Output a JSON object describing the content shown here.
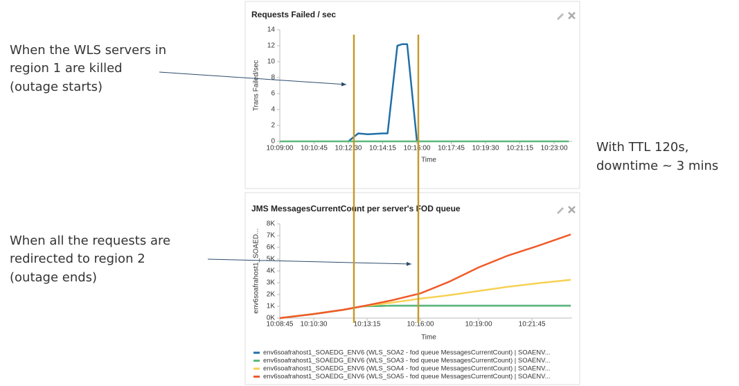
{
  "annotations": {
    "outage_start": [
      "When the WLS servers in",
      "region 1 are killed",
      "(outage starts)"
    ],
    "outage_end": [
      "When all the requests are",
      "redirected to region 2",
      "(outage ends)"
    ],
    "summary": [
      "With TTL 120s,",
      "downtime ~ 3 mins"
    ]
  },
  "chart_data": [
    {
      "type": "line",
      "title": "Requests Failed / sec",
      "x_label": "Time",
      "y_label": "Trans Failed/sec",
      "x": [
        "10:09:00",
        "10:12:30",
        "10:13:00",
        "10:13:30",
        "10:14:15",
        "10:14:30",
        "10:15:00",
        "10:15:15",
        "10:15:30",
        "10:16:00",
        "10:23:45"
      ],
      "series": [
        {
          "color": "#1f6fa8",
          "values": [
            null,
            0,
            1,
            0.9,
            1,
            1,
            12,
            12.2,
            12.2,
            0,
            null
          ]
        },
        {
          "color": "#5cb87a",
          "values": [
            0,
            0,
            0,
            0,
            0,
            0,
            0,
            0,
            0,
            0,
            0
          ]
        }
      ],
      "xlim": [
        "10:09:00",
        "10:23:55"
      ],
      "xticks": [
        "10:09:00",
        "10:10:45",
        "10:12:30",
        "10:14:15",
        "10:16:00",
        "10:17:45",
        "10:19:30",
        "10:21:15",
        "10:23:00"
      ],
      "ylim": [
        0,
        14
      ],
      "yticks": [
        0,
        2,
        4,
        6,
        8,
        10,
        12,
        14
      ]
    },
    {
      "type": "line",
      "title": "JMS MessagesCurrentCount per server's FOD queue",
      "x_label": "Time",
      "y_label": "env6soafrahost1_SOAED...",
      "x": [
        "10:08:45",
        "10:10:30",
        "10:12:00",
        "10:13:00",
        "10:14:30",
        "10:16:00",
        "10:17:30",
        "10:19:00",
        "10:20:30",
        "10:22:00",
        "10:23:45"
      ],
      "series": [
        {
          "name": "env6soafrahost1_SOAEDG_ENV6 (WLS_SOA2 - fod queue MessagesCurrentCount) | SOAENV...",
          "color": "#1f6fa8",
          "values": [
            0,
            350,
            700,
            1000,
            1050,
            1050,
            1050,
            1050,
            1050,
            1050,
            1050
          ]
        },
        {
          "name": "env6soafrahost1_SOAEDG_ENV6 (WLS_SOA3 - fod queue MessagesCurrentCount) | SOAENV...",
          "color": "#5cb87a",
          "values": [
            0,
            350,
            700,
            1000,
            1050,
            1050,
            1050,
            1050,
            1050,
            1050,
            1050
          ]
        },
        {
          "name": "env6soafrahost1_SOAEDG_ENV6 (WLS_SOA4 - fod queue MessagesCurrentCount) | SOAENV...",
          "color": "#f7d154",
          "values": [
            0,
            350,
            700,
            1000,
            1300,
            1650,
            1950,
            2300,
            2650,
            2950,
            3250
          ]
        },
        {
          "name": "env6soafrahost1_SOAEDG_ENV6 (WLS_SOA5 - fod queue MessagesCurrentCount) | SOAENV...",
          "color": "#f05a28",
          "values": [
            0,
            350,
            700,
            1000,
            1500,
            2100,
            3100,
            4300,
            5300,
            6100,
            7100
          ]
        }
      ],
      "xlim": [
        "10:08:45",
        "10:23:49"
      ],
      "xticks": [
        "10:08:45",
        "10:10:30",
        "10:13:15",
        "10:16:00",
        "10:19:00",
        "10:21:45"
      ],
      "ylim": [
        0,
        8000
      ],
      "yticks": [
        {
          "value": 0,
          "label": "0K"
        },
        {
          "value": 1000,
          "label": "1K"
        },
        {
          "value": 2000,
          "label": "2K"
        },
        {
          "value": 3000,
          "label": "3K"
        },
        {
          "value": 4000,
          "label": "4K"
        },
        {
          "value": 5000,
          "label": "5K"
        },
        {
          "value": 6000,
          "label": "6K"
        },
        {
          "value": 7000,
          "label": "7K"
        },
        {
          "value": 8000,
          "label": "8K"
        }
      ]
    }
  ]
}
